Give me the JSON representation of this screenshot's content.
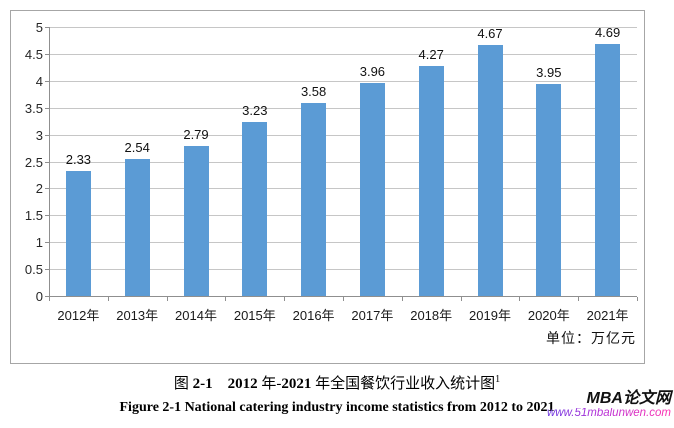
{
  "chart_data": {
    "type": "bar",
    "title": "图 2-1 2012 年-2021 年全国餐饮行业收入统计图",
    "categories": [
      "2012年",
      "2013年",
      "2014年",
      "2015年",
      "2016年",
      "2017年",
      "2018年",
      "2019年",
      "2020年",
      "2021年"
    ],
    "values": [
      2.33,
      2.54,
      2.79,
      3.23,
      3.58,
      3.96,
      4.27,
      4.67,
      3.95,
      4.69
    ],
    "ylim": [
      0,
      5
    ],
    "yticks": [
      0,
      0.5,
      1,
      1.5,
      2,
      2.5,
      3,
      3.5,
      4,
      4.5,
      5
    ],
    "xlabel": "",
    "ylabel": "",
    "unit_label": "单位：万亿元",
    "grid": "horizontal",
    "legend": "none",
    "data_labels": "above-bars"
  },
  "colors": {
    "bar": "#5B9BD5",
    "gridline": "#c6c6c6",
    "axis": "#8f8f8f",
    "frame_border": "#a6a6a6",
    "watermark_url": "#cf2fc4"
  },
  "captions": {
    "zh_parts": [
      {
        "t": "图 ",
        "b": false
      },
      {
        "t": "2-1",
        "b": true
      },
      {
        "t": "　",
        "b": false
      },
      {
        "t": "2012",
        "b": true
      },
      {
        "t": " 年-",
        "b": false
      },
      {
        "t": "2021",
        "b": true
      },
      {
        "t": " 年全国餐饮行业收入统计图",
        "b": false
      }
    ],
    "zh_footnote": "1",
    "en": "Figure 2-1 National catering industry income statistics from 2012 to 2021"
  },
  "watermark": {
    "brand": "MBA论文网",
    "url": "www.51mbalunwen.com"
  }
}
